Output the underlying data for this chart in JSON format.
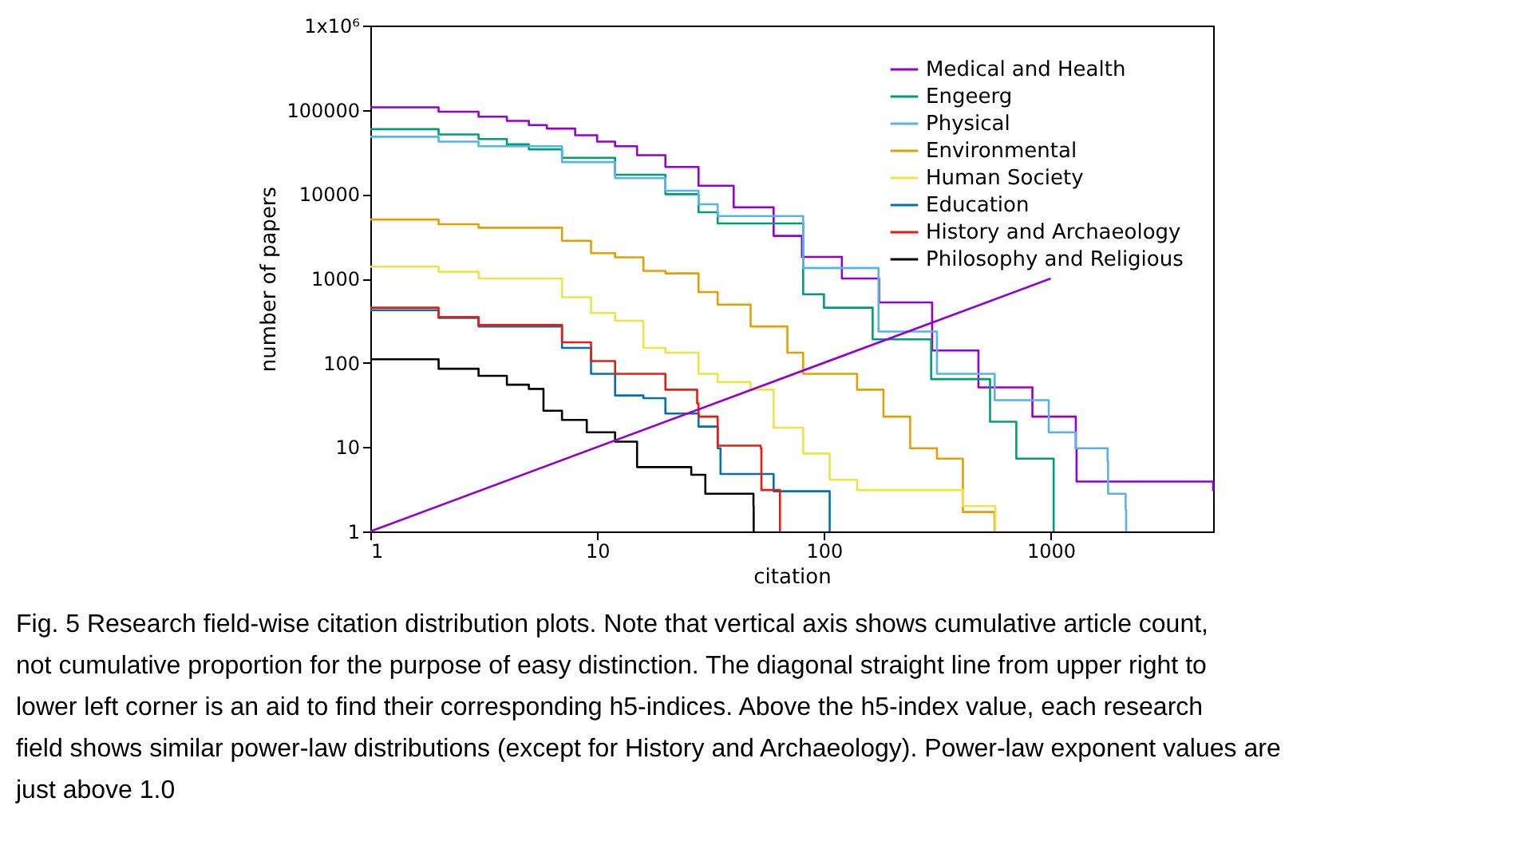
{
  "chart_data": {
    "type": "step",
    "xlabel": "citation",
    "ylabel": "number of papers",
    "log": "xy",
    "xlim": [
      1,
      5200
    ],
    "ylim": [
      1,
      1000000
    ],
    "xticks": [
      1,
      10,
      100,
      1000
    ],
    "yticks": [
      1,
      10,
      100,
      1000,
      10000,
      100000,
      {
        "value": 1000000,
        "label": "1x10⁶"
      }
    ],
    "grid": false,
    "legend": "top right",
    "line_style": "solid",
    "marker": "none",
    "series": [
      {
        "name": "Medical and Health",
        "color": "#9400d3",
        "x": [
          1,
          2,
          3,
          4,
          5,
          6,
          8,
          10,
          12,
          15,
          20,
          28,
          40,
          60,
          80,
          120,
          175,
          300,
          480,
          830,
          1290,
          1300,
          5200
        ],
        "values": [
          107000,
          95000,
          83000,
          74000,
          66000,
          60000,
          50000,
          42000,
          37000,
          29000,
          21000,
          12600,
          7000,
          3200,
          1800,
          1000,
          520,
          140,
          51,
          23,
          9.7,
          3.9,
          3.0
        ]
      },
      {
        "name": "Engeerg",
        "color": "#009e73",
        "x": [
          1,
          2,
          3,
          4,
          5,
          7,
          12,
          20,
          28,
          34,
          81,
          100,
          164,
          297,
          540,
          705,
          1030
        ],
        "values": [
          59000,
          51000,
          45000,
          39000,
          34000,
          27000,
          17000,
          10000,
          6100,
          4500,
          650,
          450,
          190,
          64,
          20,
          7.3,
          1
        ]
      },
      {
        "name": "Physical",
        "color": "#56b4e9",
        "x": [
          1,
          2,
          3,
          7,
          12,
          20,
          28,
          34,
          81,
          174,
          315,
          566,
          980,
          1290,
          1780,
          1790,
          2140,
          2150
        ],
        "values": [
          48000,
          42000,
          37000,
          24000,
          15500,
          11000,
          7600,
          5500,
          1330,
          235,
          74,
          36,
          15,
          9.7,
          6.8,
          2.8,
          1.8,
          1
        ]
      },
      {
        "name": "Environmental",
        "color": "#e69f00",
        "x": [
          1,
          2,
          3,
          7,
          9.4,
          12,
          16,
          20,
          28,
          34,
          47.5,
          69,
          81,
          140,
          183,
          240,
          315,
          410,
          566
        ],
        "values": [
          5000,
          4400,
          4000,
          2800,
          2000,
          1780,
          1230,
          1150,
          690,
          490,
          270,
          132,
          74,
          48,
          23,
          9.7,
          7.3,
          1.7,
          1
        ]
      },
      {
        "name": "Human Society",
        "color": "#f0e442",
        "x": [
          1,
          2,
          3,
          7,
          9.4,
          12,
          16,
          20,
          28,
          34,
          47.5,
          60,
          81,
          106,
          140,
          410,
          570
        ],
        "values": [
          1380,
          1200,
          1000,
          600,
          390,
          315,
          150,
          132,
          74,
          59,
          48,
          17,
          8.4,
          4.1,
          3.1,
          2.0,
          1
        ]
      },
      {
        "name": "Education",
        "color": "#0072b2",
        "x": [
          1,
          2,
          3,
          7,
          9.4,
          12,
          16,
          20,
          28,
          34,
          35,
          60,
          106
        ],
        "values": [
          420,
          340,
          270,
          150,
          74,
          41,
          38,
          25,
          17.5,
          9.7,
          4.8,
          3.0,
          1
        ]
      },
      {
        "name": "History and Archaeology",
        "color": "#e51e10",
        "x": [
          1,
          2,
          3,
          7,
          9.4,
          12,
          16,
          20,
          27.6,
          28,
          34,
          52.6,
          53,
          64
        ],
        "values": [
          450,
          350,
          280,
          175,
          105,
          74,
          74,
          48,
          33,
          23,
          10.4,
          9.7,
          3.1,
          1
        ]
      },
      {
        "name": "Philosophy and Religious",
        "color": "#000000",
        "x": [
          1,
          2,
          3,
          4,
          5,
          5.8,
          7,
          9,
          12,
          15,
          26,
          30,
          48.9,
          49
        ],
        "values": [
          110,
          85,
          70,
          55,
          49,
          27,
          21,
          15,
          11.6,
          5.8,
          4.7,
          2.8,
          2.0,
          1
        ]
      },
      {
        "type": "line",
        "color": "#9400d3",
        "x": [
          1,
          1000
        ],
        "values": [
          1,
          1000
        ]
      }
    ],
    "annotations": [
      "Fig. 5  Research field-wise citation distribution plots. Note that vertical axis shows cumulative article count, not cumulative proportion for the purpose of easy distinction. The diagonal straight line from upper right to lower left corner is an aid to find their corresponding h5-indices. Above the h5-index value, each research field shows similar power-law distributions (except for History and Archaeology). Power-law exponent values are just above 1.0"
    ]
  }
}
